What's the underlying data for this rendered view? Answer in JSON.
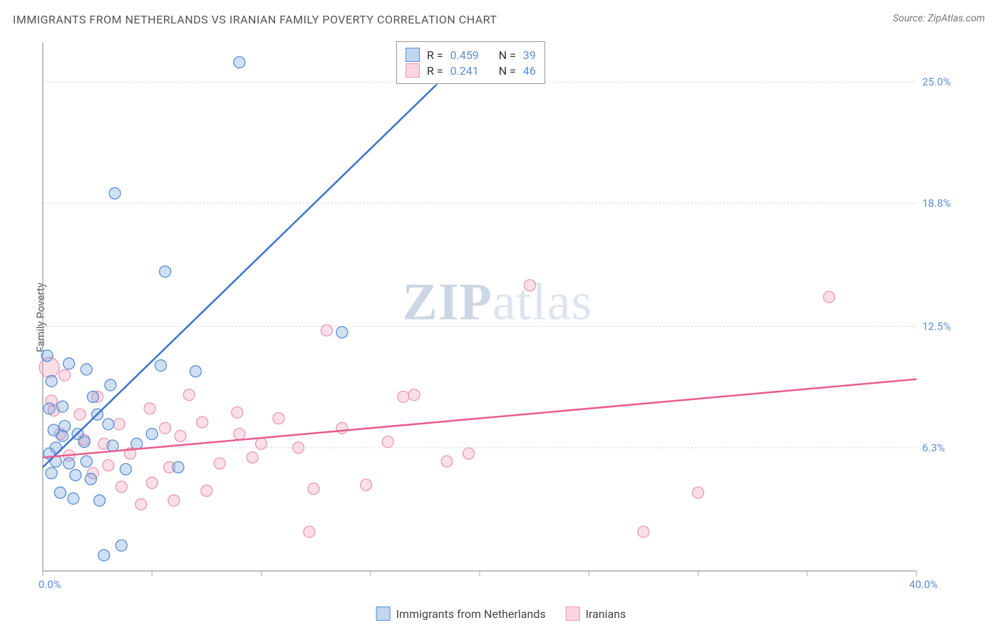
{
  "title": "IMMIGRANTS FROM NETHERLANDS VS IRANIAN FAMILY POVERTY CORRELATION CHART",
  "source": "Source: ZipAtlas.com",
  "y_axis_label": "Family Poverty",
  "watermark_part1": "ZIP",
  "watermark_part2": "atlas",
  "chart": {
    "type": "scatter",
    "background_color": "#ffffff",
    "grid_color": "#d0d0d0",
    "axis_color": "#aaaaaa",
    "xlim": [
      0,
      40
    ],
    "ylim": [
      0,
      27
    ],
    "x_tick_start": 0.0,
    "x_tick_end": 40.0,
    "x_minor_step": 5.0,
    "y_ticks": [
      6.3,
      12.5,
      18.8,
      25.0
    ],
    "y_tick_labels": [
      "6.3%",
      "12.5%",
      "18.8%",
      "25.0%"
    ],
    "x_start_label": "0.0%",
    "x_end_label": "40.0%",
    "marker_radius": 8,
    "marker_large_radius": 14,
    "trend_line_width": 2.5,
    "series": [
      {
        "name": "Immigrants from Netherlands",
        "color_fill": "rgba(120,165,220,0.35)",
        "color_stroke": "#5b8dd6",
        "trend_color": "#3b73c9",
        "R": 0.459,
        "N": 39,
        "trend": {
          "x1": 0,
          "y1": 5.3,
          "x2": 20,
          "y2": 27,
          "dash_from_x": 18
        },
        "points": [
          [
            9.0,
            26.0
          ],
          [
            3.3,
            19.3
          ],
          [
            5.6,
            15.3
          ],
          [
            1.2,
            10.6
          ],
          [
            2.0,
            10.3
          ],
          [
            0.4,
            9.7
          ],
          [
            3.1,
            9.5
          ],
          [
            5.4,
            10.5
          ],
          [
            7.0,
            10.2
          ],
          [
            13.7,
            12.2
          ],
          [
            2.3,
            8.9
          ],
          [
            0.3,
            8.3
          ],
          [
            0.5,
            7.2
          ],
          [
            1.0,
            7.4
          ],
          [
            1.6,
            7.0
          ],
          [
            0.6,
            6.3
          ],
          [
            0.3,
            6.0
          ],
          [
            1.2,
            5.5
          ],
          [
            2.0,
            5.6
          ],
          [
            3.2,
            6.4
          ],
          [
            1.5,
            4.9
          ],
          [
            2.2,
            4.7
          ],
          [
            0.8,
            4.0
          ],
          [
            1.4,
            3.7
          ],
          [
            2.6,
            3.6
          ],
          [
            3.6,
            1.3
          ],
          [
            2.8,
            0.8
          ],
          [
            6.2,
            5.3
          ],
          [
            4.3,
            6.5
          ],
          [
            3.0,
            7.5
          ],
          [
            1.9,
            6.6
          ],
          [
            0.9,
            8.4
          ],
          [
            0.4,
            5.0
          ],
          [
            0.6,
            5.6
          ],
          [
            5.0,
            7.0
          ],
          [
            0.2,
            11.0
          ],
          [
            0.9,
            6.9
          ],
          [
            2.5,
            8.0
          ],
          [
            3.8,
            5.2
          ]
        ]
      },
      {
        "name": "Iranians",
        "color_fill": "rgba(240,150,180,0.30)",
        "color_stroke": "#e999b5",
        "trend_color": "#e85d8a",
        "R": 0.241,
        "N": 46,
        "trend": {
          "x1": 0,
          "y1": 5.8,
          "x2": 40,
          "y2": 9.8
        },
        "points": [
          [
            22.3,
            14.6
          ],
          [
            36.0,
            14.0
          ],
          [
            30.0,
            4.0
          ],
          [
            27.5,
            2.0
          ],
          [
            12.2,
            2.0
          ],
          [
            18.5,
            5.6
          ],
          [
            14.8,
            4.4
          ],
          [
            15.8,
            6.6
          ],
          [
            13.7,
            7.3
          ],
          [
            12.4,
            4.2
          ],
          [
            10.0,
            6.5
          ],
          [
            10.8,
            7.8
          ],
          [
            9.0,
            7.0
          ],
          [
            8.1,
            5.5
          ],
          [
            6.3,
            6.9
          ],
          [
            5.0,
            4.5
          ],
          [
            5.6,
            7.3
          ],
          [
            4.0,
            6.0
          ],
          [
            3.5,
            7.5
          ],
          [
            2.8,
            6.5
          ],
          [
            2.3,
            5.0
          ],
          [
            1.9,
            6.7
          ],
          [
            1.2,
            5.9
          ],
          [
            0.8,
            7.0
          ],
          [
            0.5,
            8.2
          ],
          [
            6.7,
            9.0
          ],
          [
            4.9,
            8.3
          ],
          [
            3.6,
            4.3
          ],
          [
            8.9,
            8.1
          ],
          [
            11.7,
            6.3
          ],
          [
            13.0,
            12.3
          ],
          [
            17.0,
            9.0
          ],
          [
            19.5,
            6.0
          ],
          [
            7.5,
            4.1
          ],
          [
            6.0,
            3.6
          ],
          [
            4.5,
            3.4
          ],
          [
            2.5,
            8.9
          ],
          [
            1.7,
            8.0
          ],
          [
            0.3,
            10.4
          ],
          [
            0.4,
            8.7
          ],
          [
            9.6,
            5.8
          ],
          [
            16.5,
            8.9
          ],
          [
            1.0,
            10.0
          ],
          [
            3.0,
            5.4
          ],
          [
            7.3,
            7.6
          ],
          [
            5.8,
            5.3
          ]
        ]
      }
    ]
  },
  "legend_stats": {
    "label_R": "R =",
    "label_N": "N ="
  },
  "legend_series": [
    {
      "swatch": "blue",
      "label": "Immigrants from Netherlands"
    },
    {
      "swatch": "pink",
      "label": "Iranians"
    }
  ]
}
